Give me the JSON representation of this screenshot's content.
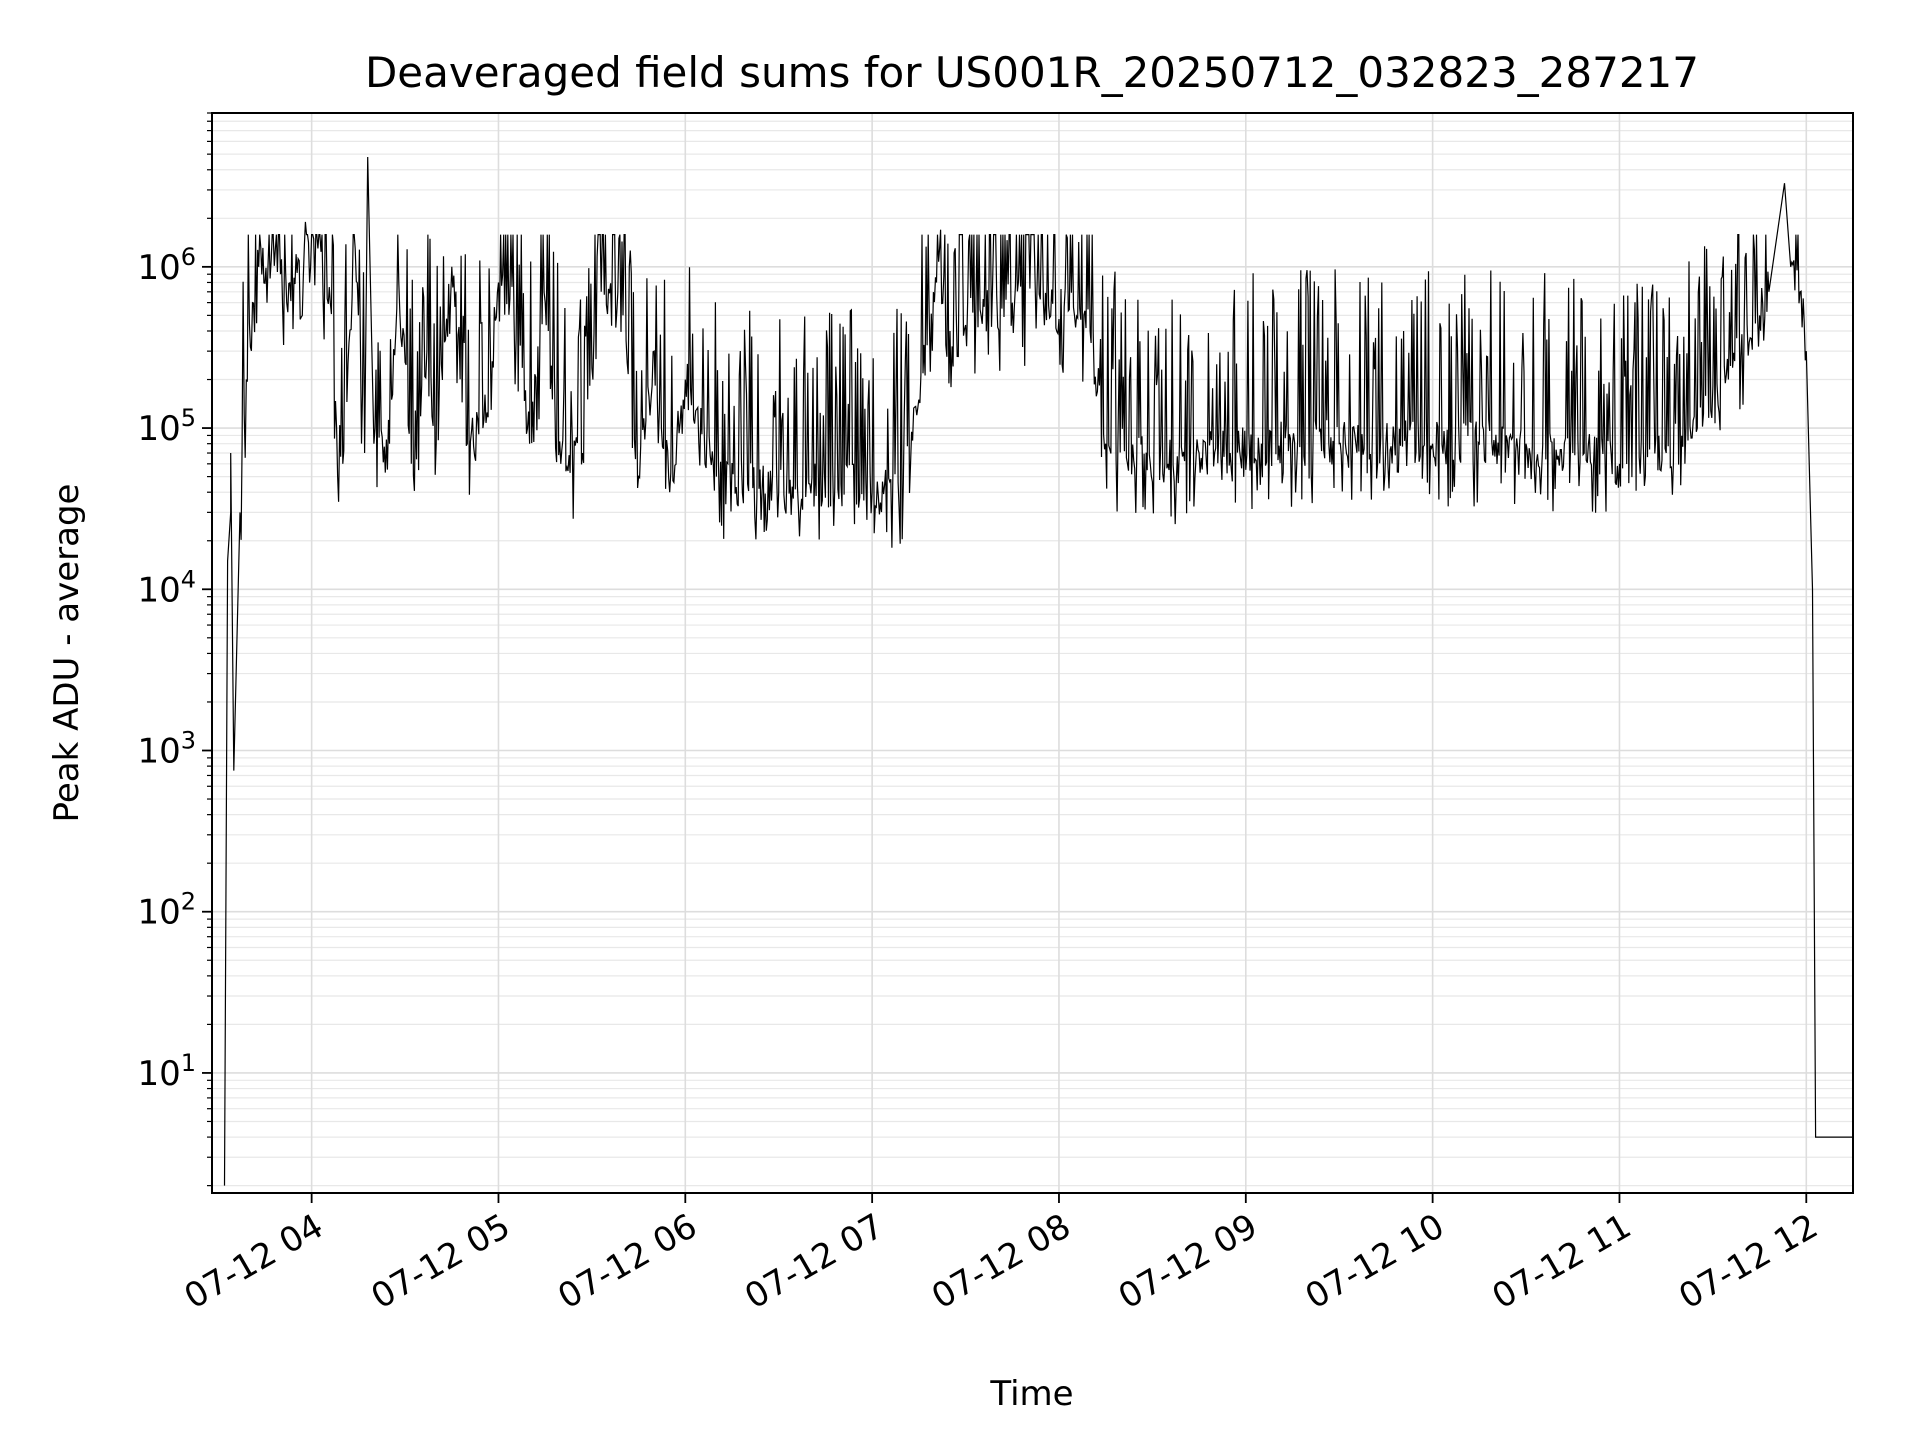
{
  "chart_data": {
    "type": "line",
    "title": "Deaveraged field sums for US001R_20250712_032823_287217",
    "xlabel": "Time",
    "ylabel": "Peak ADU - average",
    "yscale": "log",
    "ylim": [
      1.8,
      9000000
    ],
    "xlim": [
      "2025-07-12 03:28",
      "2025-07-12 12:15"
    ],
    "grid": true,
    "legend": "none",
    "line_color": "#000000",
    "x_ticks": [
      {
        "x": "2025-07-12 04:00",
        "label": "07-12 04"
      },
      {
        "x": "2025-07-12 05:00",
        "label": "07-12 05"
      },
      {
        "x": "2025-07-12 06:00",
        "label": "07-12 06"
      },
      {
        "x": "2025-07-12 07:00",
        "label": "07-12 07"
      },
      {
        "x": "2025-07-12 08:00",
        "label": "07-12 08"
      },
      {
        "x": "2025-07-12 09:00",
        "label": "07-12 09"
      },
      {
        "x": "2025-07-12 10:00",
        "label": "07-12 10"
      },
      {
        "x": "2025-07-12 11:00",
        "label": "07-12 11"
      },
      {
        "x": "2025-07-12 12:00",
        "label": "07-12 12"
      }
    ],
    "y_ticks": [
      {
        "y": 10,
        "base": "10",
        "exp": "1"
      },
      {
        "y": 100,
        "base": "10",
        "exp": "2"
      },
      {
        "y": 1000,
        "base": "10",
        "exp": "3"
      },
      {
        "y": 10000,
        "base": "10",
        "exp": "4"
      },
      {
        "y": 100000,
        "base": "10",
        "exp": "5"
      },
      {
        "y": 1000000,
        "base": "10",
        "exp": "6"
      }
    ],
    "series": [
      {
        "points": [
          [
            "2025-07-12 03:32",
            2
          ],
          [
            "2025-07-12 03:33",
            15000
          ],
          [
            "2025-07-12 03:34",
            30000
          ],
          [
            "2025-07-12 03:34",
            70000
          ],
          [
            "2025-07-12 03:35",
            750
          ],
          [
            "2025-07-12 03:37",
            30000
          ],
          [
            "2025-07-12 03:39",
            200000
          ],
          [
            "2025-07-12 03:41",
            600000
          ],
          [
            "2025-07-12 03:43",
            1000000
          ],
          [
            "2025-07-12 03:47",
            1100000
          ],
          [
            "2025-07-12 03:50",
            900000
          ],
          [
            "2025-07-12 03:52",
            600000
          ],
          [
            "2025-07-12 03:55",
            1200000
          ],
          [
            "2025-07-12 03:57",
            500000
          ],
          [
            "2025-07-12 03:58",
            1900000
          ],
          [
            "2025-07-12 04:02",
            1300000
          ],
          [
            "2025-07-12 04:06",
            600000
          ],
          [
            "2025-07-12 04:08",
            100000
          ],
          [
            "2025-07-12 04:10",
            60000
          ],
          [
            "2025-07-12 04:14",
            1300000
          ],
          [
            "2025-07-12 04:17",
            70000
          ],
          [
            "2025-07-12 04:18",
            4800000
          ],
          [
            "2025-07-12 04:20",
            80000
          ],
          [
            "2025-07-12 04:25",
            80000
          ],
          [
            "2025-07-12 04:28",
            800000
          ],
          [
            "2025-07-12 04:32",
            60000
          ],
          [
            "2025-07-12 04:37",
            300000
          ],
          [
            "2025-07-12 04:40",
            80000
          ],
          [
            "2025-07-12 04:45",
            1000000
          ],
          [
            "2025-07-12 04:50",
            80000
          ],
          [
            "2025-07-12 04:55",
            100000
          ],
          [
            "2025-07-12 05:00",
            800000
          ],
          [
            "2025-07-12 05:05",
            500000
          ],
          [
            "2025-07-12 05:10",
            80000
          ],
          [
            "2025-07-12 05:15",
            600000
          ],
          [
            "2025-07-12 05:20",
            60000
          ],
          [
            "2025-07-12 05:27",
            70000
          ],
          [
            "2025-07-12 05:33",
            700000
          ],
          [
            "2025-07-12 05:40",
            500000
          ],
          [
            "2025-07-12 05:45",
            50000
          ],
          [
            "2025-07-12 05:50",
            300000
          ],
          [
            "2025-07-12 05:55",
            40000
          ],
          [
            "2025-07-12 06:00",
            200000
          ],
          [
            "2025-07-12 06:10",
            50000
          ],
          [
            "2025-07-12 06:20",
            45000
          ],
          [
            "2025-07-12 06:30",
            40000
          ],
          [
            "2025-07-12 06:40",
            45000
          ],
          [
            "2025-07-12 06:50",
            45000
          ],
          [
            "2025-07-12 07:00",
            40000
          ],
          [
            "2025-07-12 07:10",
            45000
          ],
          [
            "2025-07-12 07:15",
            150000
          ],
          [
            "2025-07-12 07:22",
            1700000
          ],
          [
            "2025-07-12 07:25",
            400000
          ],
          [
            "2025-07-12 07:35",
            500000
          ],
          [
            "2025-07-12 07:45",
            600000
          ],
          [
            "2025-07-12 07:55",
            600000
          ],
          [
            "2025-07-12 08:05",
            500000
          ],
          [
            "2025-07-12 08:10",
            400000
          ],
          [
            "2025-07-12 08:15",
            80000
          ],
          [
            "2025-07-12 08:25",
            70000
          ],
          [
            "2025-07-12 08:35",
            60000
          ],
          [
            "2025-07-12 08:45",
            70000
          ],
          [
            "2025-07-12 08:55",
            70000
          ],
          [
            "2025-07-12 09:05",
            80000
          ],
          [
            "2025-07-12 09:15",
            80000
          ],
          [
            "2025-07-12 09:30",
            80000
          ],
          [
            "2025-07-12 09:45",
            80000
          ],
          [
            "2025-07-12 10:00",
            80000
          ],
          [
            "2025-07-12 10:15",
            80000
          ],
          [
            "2025-07-12 10:30",
            80000
          ],
          [
            "2025-07-12 10:45",
            70000
          ],
          [
            "2025-07-12 11:00",
            60000
          ],
          [
            "2025-07-12 11:15",
            70000
          ],
          [
            "2025-07-12 11:25",
            100000
          ],
          [
            "2025-07-12 11:35",
            200000
          ],
          [
            "2025-07-12 11:40",
            350000
          ],
          [
            "2025-07-12 11:45",
            500000
          ],
          [
            "2025-07-12 11:48",
            700000
          ],
          [
            "2025-07-12 11:53",
            3300000
          ],
          [
            "2025-07-12 11:55",
            1000000
          ],
          [
            "2025-07-12 11:58",
            700000
          ],
          [
            "2025-07-12 12:00",
            300000
          ],
          [
            "2025-07-12 12:02",
            10000
          ],
          [
            "2025-07-12 12:03",
            4
          ],
          [
            "2025-07-12 12:15",
            4
          ]
        ]
      }
    ]
  }
}
